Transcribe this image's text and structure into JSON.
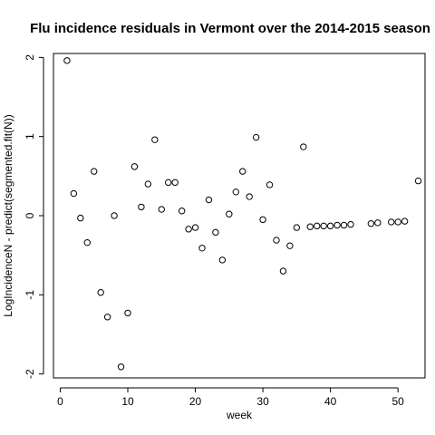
{
  "chart_data": {
    "type": "scatter",
    "title": "Flu incidence residuals in Vermont over the 2014-2015 season",
    "xlabel": "week",
    "ylabel": "LogIncidenceN - predict(segmented.fit(N))",
    "xlim": [
      -1,
      54
    ],
    "ylim": [
      -2.05,
      2.05
    ],
    "xticks": [
      0,
      10,
      20,
      30,
      40,
      50
    ],
    "yticks": [
      -2,
      -1,
      0,
      1,
      2
    ],
    "xtick_labels": [
      "0",
      "10",
      "20",
      "30",
      "40",
      "50"
    ],
    "ytick_labels": [
      "-2",
      "-1",
      "0",
      "1",
      "2"
    ],
    "grid": false,
    "marker": "open-circle",
    "points": [
      {
        "x": 1,
        "y": 1.96
      },
      {
        "x": 2,
        "y": 0.28
      },
      {
        "x": 3,
        "y": -0.03
      },
      {
        "x": 4,
        "y": -0.34
      },
      {
        "x": 5,
        "y": 0.56
      },
      {
        "x": 6,
        "y": -0.97
      },
      {
        "x": 7,
        "y": -1.28
      },
      {
        "x": 8,
        "y": 0.0
      },
      {
        "x": 9,
        "y": -1.91
      },
      {
        "x": 10,
        "y": -1.23
      },
      {
        "x": 11,
        "y": 0.62
      },
      {
        "x": 12,
        "y": 0.11
      },
      {
        "x": 13,
        "y": 0.4
      },
      {
        "x": 14,
        "y": 0.96
      },
      {
        "x": 15,
        "y": 0.08
      },
      {
        "x": 16,
        "y": 0.42
      },
      {
        "x": 17,
        "y": 0.42
      },
      {
        "x": 18,
        "y": 0.06
      },
      {
        "x": 19,
        "y": -0.17
      },
      {
        "x": 20,
        "y": -0.15
      },
      {
        "x": 21,
        "y": -0.41
      },
      {
        "x": 22,
        "y": 0.2
      },
      {
        "x": 23,
        "y": -0.21
      },
      {
        "x": 24,
        "y": -0.56
      },
      {
        "x": 25,
        "y": 0.02
      },
      {
        "x": 26,
        "y": 0.3
      },
      {
        "x": 27,
        "y": 0.56
      },
      {
        "x": 28,
        "y": 0.24
      },
      {
        "x": 29,
        "y": 0.99
      },
      {
        "x": 30,
        "y": -0.05
      },
      {
        "x": 31,
        "y": 0.39
      },
      {
        "x": 32,
        "y": -0.31
      },
      {
        "x": 33,
        "y": -0.7
      },
      {
        "x": 34,
        "y": -0.38
      },
      {
        "x": 35,
        "y": -0.15
      },
      {
        "x": 36,
        "y": 0.87
      },
      {
        "x": 37,
        "y": -0.14
      },
      {
        "x": 38,
        "y": -0.13
      },
      {
        "x": 39,
        "y": -0.13
      },
      {
        "x": 40,
        "y": -0.13
      },
      {
        "x": 41,
        "y": -0.12
      },
      {
        "x": 42,
        "y": -0.12
      },
      {
        "x": 43,
        "y": -0.11
      },
      {
        "x": 46,
        "y": -0.1
      },
      {
        "x": 47,
        "y": -0.09
      },
      {
        "x": 49,
        "y": -0.08
      },
      {
        "x": 50,
        "y": -0.08
      },
      {
        "x": 51,
        "y": -0.07
      },
      {
        "x": 53,
        "y": 0.44
      }
    ]
  }
}
